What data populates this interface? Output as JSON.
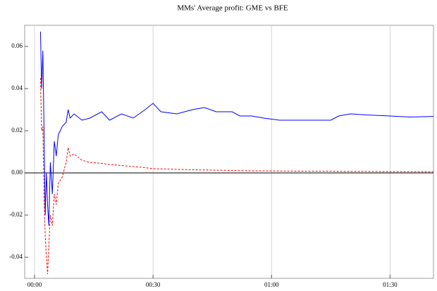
{
  "chart_data": {
    "type": "line",
    "title": "MMs' Average profit: GME vs BFE",
    "x": [
      1.5,
      1.8,
      2.1,
      2.4,
      2.7,
      3.0,
      3.3,
      3.6,
      4,
      4.5,
      5,
      5.5,
      6,
      7,
      8,
      8.5,
      9,
      10,
      12,
      14,
      17,
      19,
      22,
      25,
      28,
      30,
      32,
      36,
      40,
      43,
      46,
      50,
      52,
      55,
      58,
      62,
      70,
      75,
      77,
      80,
      84,
      90,
      95,
      101
    ],
    "series": [
      {
        "color": "#0000ff",
        "style": "solid",
        "values": [
          0.067,
          0.04,
          0.058,
          0.02,
          -0.02,
          0.0,
          -0.015,
          -0.025,
          0.005,
          -0.01,
          0.015,
          0.008,
          0.018,
          0.022,
          0.024,
          0.03,
          0.026,
          0.028,
          0.025,
          0.026,
          0.029,
          0.025,
          0.028,
          0.026,
          0.03,
          0.033,
          0.029,
          0.028,
          0.03,
          0.031,
          0.029,
          0.029,
          0.027,
          0.027,
          0.026,
          0.025,
          0.025,
          0.025,
          0.027,
          0.028,
          0.0275,
          0.027,
          0.0265,
          0.0268
        ]
      },
      {
        "color": "#ff0000",
        "style": "dashed",
        "values": [
          0.045,
          0.02,
          0.022,
          -0.01,
          -0.03,
          -0.04,
          -0.048,
          -0.035,
          -0.02,
          -0.025,
          -0.01,
          -0.015,
          -0.005,
          -0.002,
          0.005,
          0.012,
          0.008,
          0.009,
          0.006,
          0.005,
          0.0045,
          0.004,
          0.0035,
          0.003,
          0.0025,
          0.002,
          0.0019,
          0.0017,
          0.0015,
          0.0014,
          0.0013,
          0.0012,
          0.0011,
          0.001,
          0.001,
          0.0009,
          0.0008,
          0.0008,
          0.0007,
          0.0007,
          0.0007,
          0.0006,
          0.0006,
          0.0005
        ]
      }
    ],
    "xlim": [
      -2.5,
      101
    ],
    "xticks": [
      {
        "value": 0,
        "label": "00:00"
      },
      {
        "value": 30,
        "label": "00:30"
      },
      {
        "value": 60,
        "label": "01:00"
      },
      {
        "value": 90,
        "label": "01:30"
      }
    ],
    "ylim": [
      -0.05,
      0.07
    ],
    "yticks": [
      -0.04,
      -0.02,
      {
        "value": 0,
        "label": "0.00"
      },
      0.02,
      0.04,
      0.06
    ],
    "grid": "x"
  }
}
